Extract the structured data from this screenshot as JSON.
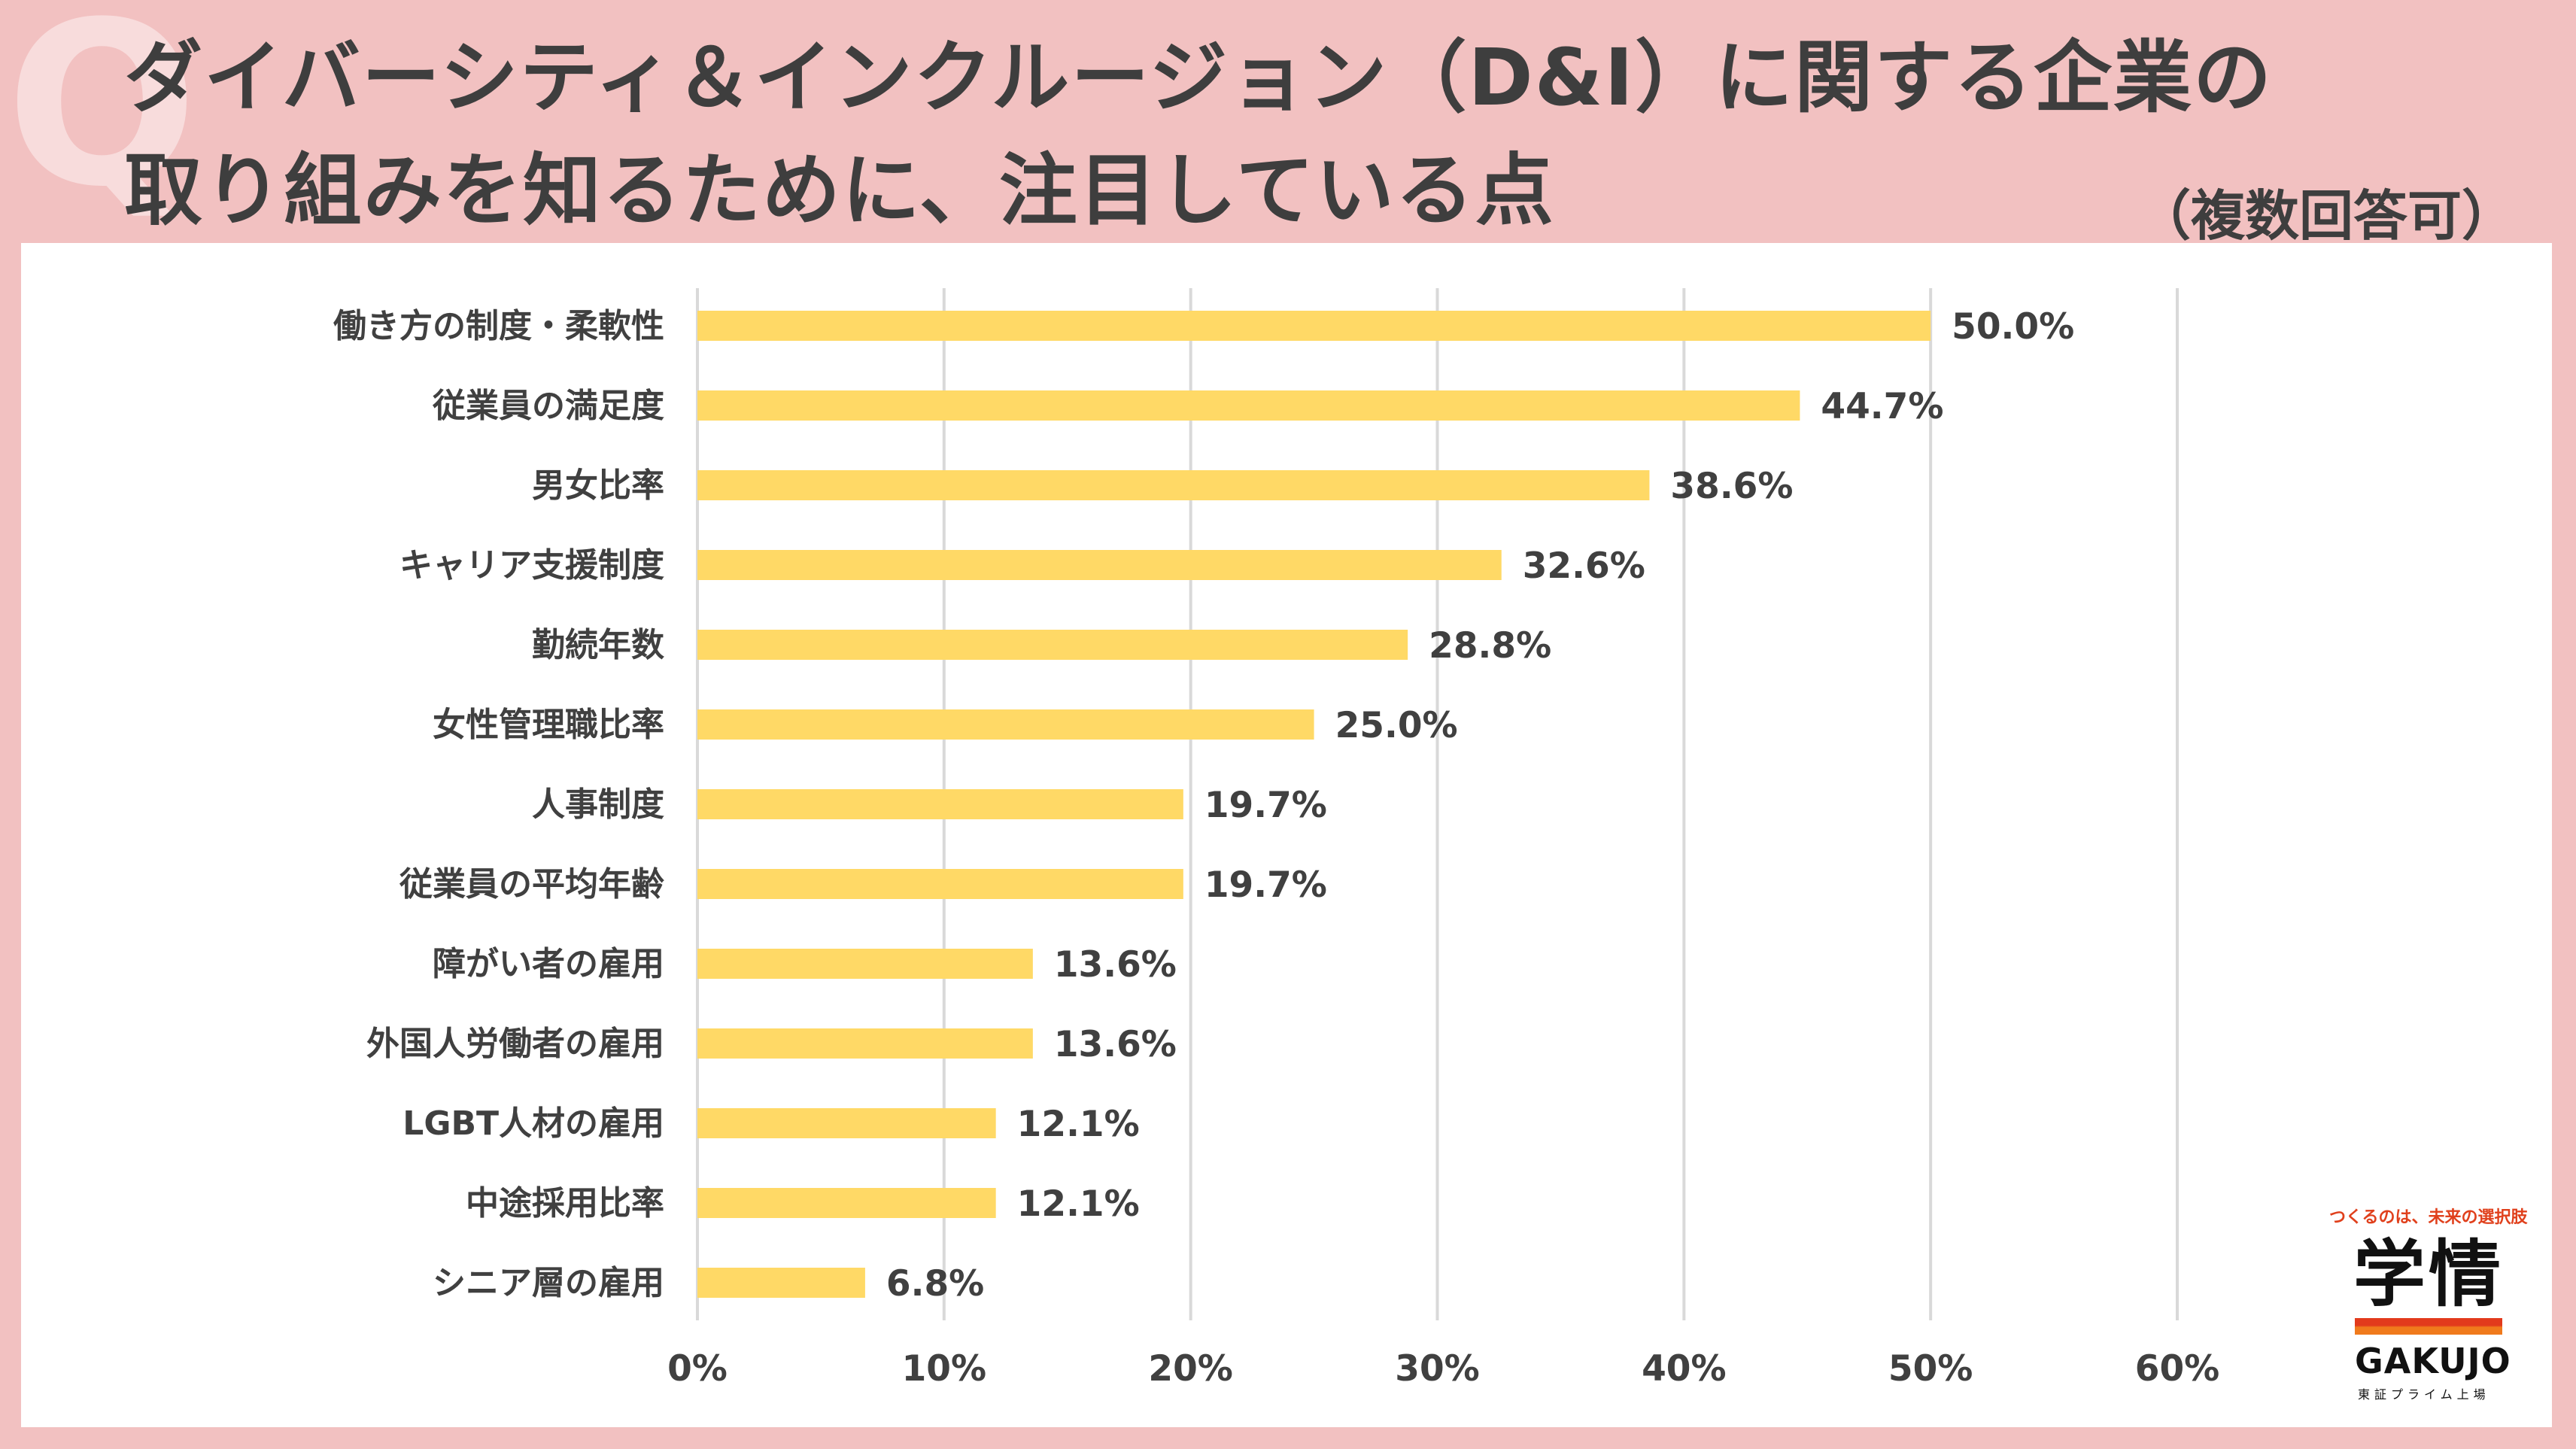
{
  "header": {
    "q_mark": "Q",
    "title_line1": "ダイバーシティ＆インクルージョン（D&I）に関する企業の",
    "title_line2": "取り組みを知るために、注目している点",
    "subtitle": "（複数回答可）"
  },
  "chart_data": {
    "type": "bar",
    "orientation": "horizontal",
    "categories": [
      "働き方の制度・柔軟性",
      "従業員の満足度",
      "男女比率",
      "キャリア支援制度",
      "勤続年数",
      "女性管理職比率",
      "人事制度",
      "従業員の平均年齢",
      "障がい者の雇用",
      "外国人労働者の雇用",
      "LGBT人材の雇用",
      "中途採用比率",
      "シニア層の雇用"
    ],
    "values": [
      50.0,
      44.7,
      38.6,
      32.6,
      28.8,
      25.0,
      19.7,
      19.7,
      13.6,
      13.6,
      12.1,
      12.1,
      6.8
    ],
    "value_labels": [
      "50.0%",
      "44.7%",
      "38.6%",
      "32.6%",
      "28.8%",
      "25.0%",
      "19.7%",
      "19.7%",
      "13.6%",
      "13.6%",
      "12.1%",
      "12.1%",
      "6.8%"
    ],
    "xlim": [
      0,
      60
    ],
    "x_ticks": [
      0,
      10,
      20,
      30,
      40,
      50,
      60
    ],
    "x_tick_labels": [
      "0%",
      "10%",
      "20%",
      "30%",
      "40%",
      "50%",
      "60%"
    ],
    "grid": true,
    "bar_color": "#ffd966",
    "grid_color": "#d9d9d9"
  },
  "logo": {
    "tagline": "つくるのは、未来の選択肢",
    "mark": "学情",
    "name": "GAKUJO",
    "sub": "東証プライム上場"
  },
  "colors": {
    "background": "#f2c1c1",
    "panel": "#ffffff",
    "text": "#404040",
    "logo_accent": "#e23a1c"
  }
}
